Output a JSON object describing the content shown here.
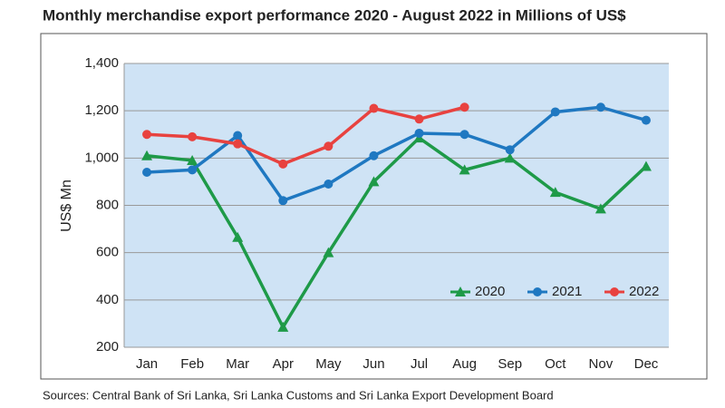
{
  "chart_data": {
    "type": "line",
    "title": "Monthly merchandise export performance 2020 - August 2022 in Millions of US$",
    "ylabel": "US$ Mn",
    "source": "Sources: Central Bank of Sri Lanka, Sri Lanka Customs and Sri Lanka Export Development Board",
    "categories": [
      "Jan",
      "Feb",
      "Mar",
      "Apr",
      "May",
      "Jun",
      "Jul",
      "Aug",
      "Sep",
      "Oct",
      "Nov",
      "Dec"
    ],
    "series": [
      {
        "name": "2020",
        "color": "#1e9a48",
        "marker": "triangle",
        "values": [
          1010,
          990,
          665,
          285,
          600,
          900,
          1085,
          950,
          1000,
          855,
          785,
          965
        ]
      },
      {
        "name": "2021",
        "color": "#1f78c1",
        "marker": "circle",
        "values": [
          940,
          950,
          1095,
          820,
          890,
          1010,
          1105,
          1100,
          1035,
          1195,
          1215,
          1160
        ]
      },
      {
        "name": "2022",
        "color": "#e8423f",
        "marker": "circle",
        "values": [
          1100,
          1090,
          1060,
          975,
          1050,
          1210,
          1165,
          1215,
          null,
          null,
          null,
          null
        ]
      }
    ],
    "ylim": [
      200,
      1400
    ],
    "yticks": [
      200,
      400,
      600,
      800,
      {
        "value": 1000,
        "label": "1,000"
      },
      {
        "value": 1200,
        "label": "1,200"
      },
      {
        "value": 1400,
        "label": "1,400"
      }
    ],
    "grid": true,
    "legend": "lower right"
  }
}
